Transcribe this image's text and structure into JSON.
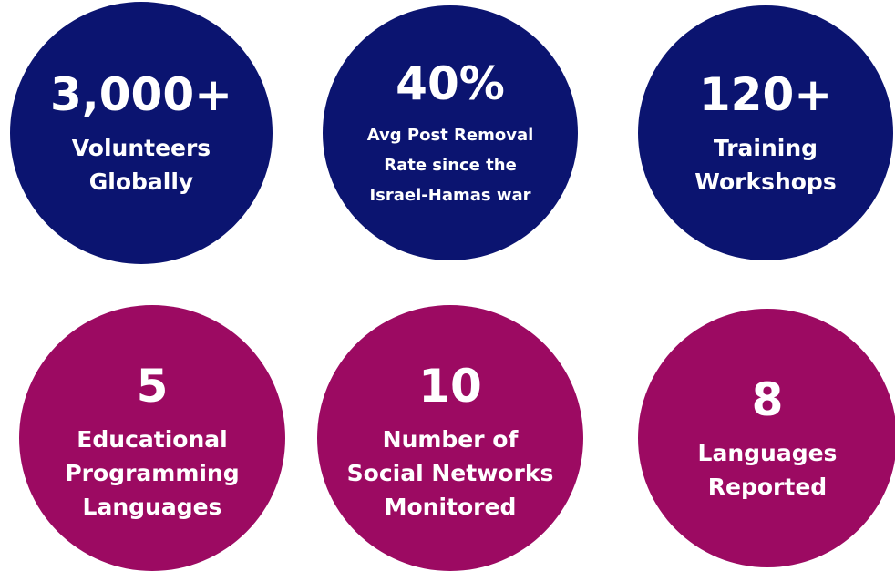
{
  "stats": [
    {
      "value": "3,000+",
      "label": [
        "Volunteers",
        "Globally"
      ]
    },
    {
      "value": "40%",
      "label": [
        "Avg Post Removal",
        "Rate since the",
        "Israel-Hamas war"
      ]
    },
    {
      "value": "120+",
      "label": [
        "Training",
        "Workshops"
      ]
    },
    {
      "value": "5",
      "label": [
        "Educational",
        "Programming",
        "Languages"
      ]
    },
    {
      "value": "10",
      "label": [
        "Number of",
        "Social Networks",
        "Monitored"
      ]
    },
    {
      "value": "8",
      "label": [
        "Languages",
        "Reported"
      ]
    }
  ]
}
